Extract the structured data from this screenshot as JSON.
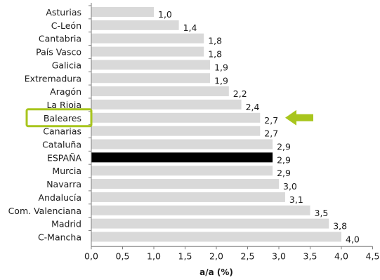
{
  "chart_data": {
    "type": "bar",
    "orientation": "horizontal",
    "categories": [
      "Asturias",
      "C-León",
      "Cantabria",
      "País Vasco",
      "Galicia",
      "Extremadura",
      "Aragón",
      "La Rioja",
      "Baleares",
      "Canarias",
      "Cataluña",
      "ESPAÑA",
      "Murcia",
      "Navarra",
      "Andalucía",
      "Com. Valenciana",
      "Madrid",
      "C-Mancha"
    ],
    "values": [
      1.0,
      1.4,
      1.8,
      1.8,
      1.9,
      1.9,
      2.2,
      2.4,
      2.7,
      2.7,
      2.9,
      2.9,
      2.9,
      3.0,
      3.1,
      3.5,
      3.8,
      4.0
    ],
    "value_labels": [
      "1,0",
      "1,4",
      "1,8",
      "1,8",
      "1,9",
      "1,9",
      "2,2",
      "2,4",
      "2,7",
      "2,7",
      "2,9",
      "2,9",
      "2,9",
      "3,0",
      "3,1",
      "3,5",
      "3,8",
      "4,0"
    ],
    "xlabel": "a/a (%)",
    "xlim": [
      0,
      4.5
    ],
    "xticks": [
      0,
      0.5,
      1.0,
      1.5,
      2.0,
      2.5,
      3.0,
      3.5,
      4.0,
      4.5
    ],
    "xtick_labels": [
      "0,0",
      "0,5",
      "1,0",
      "1,5",
      "2,0",
      "2,5",
      "3,0",
      "3,5",
      "4,0",
      "4,5"
    ],
    "grid": false,
    "highlighted_category": "Baleares",
    "colors": {
      "bar": "#d9d9d9",
      "bar_highlight": "#000000",
      "highlight_box": "#a8c51d",
      "arrow": "#a8c51d",
      "axis": "#7f7f7f"
    },
    "annotations": [
      "highlight-box around Baleares label",
      "arrow pointing left at Baleares bar"
    ]
  }
}
